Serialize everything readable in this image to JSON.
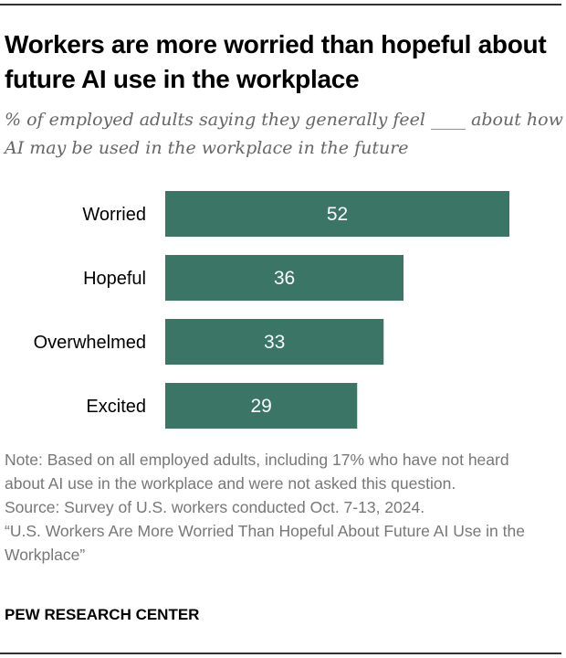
{
  "title": "Workers are more worried than hopeful about future AI use in the workplace",
  "subtitle": "% of employed adults saying they generally feel ____ about how AI may be used in the workplace in the future",
  "colors": {
    "bar": "#3a7565",
    "bar_label": "#ffffff",
    "category_label": "#000000"
  },
  "chart_data": {
    "type": "bar",
    "orientation": "horizontal",
    "categories": [
      "Worried",
      "Hopeful",
      "Overwhelmed",
      "Excited"
    ],
    "values": [
      52,
      36,
      33,
      29
    ],
    "xlim": [
      0,
      60
    ],
    "grid": false,
    "data_labels": true
  },
  "notes": {
    "note": "Note: Based on all employed adults, including 17% who have not heard about AI use in the workplace and were not asked this question.",
    "source": "Source: Survey of U.S. workers conducted Oct. 7-13, 2024.",
    "report": "“U.S. Workers Are More Worried Than Hopeful About Future AI Use in the Workplace”"
  },
  "brand": "PEW RESEARCH CENTER"
}
